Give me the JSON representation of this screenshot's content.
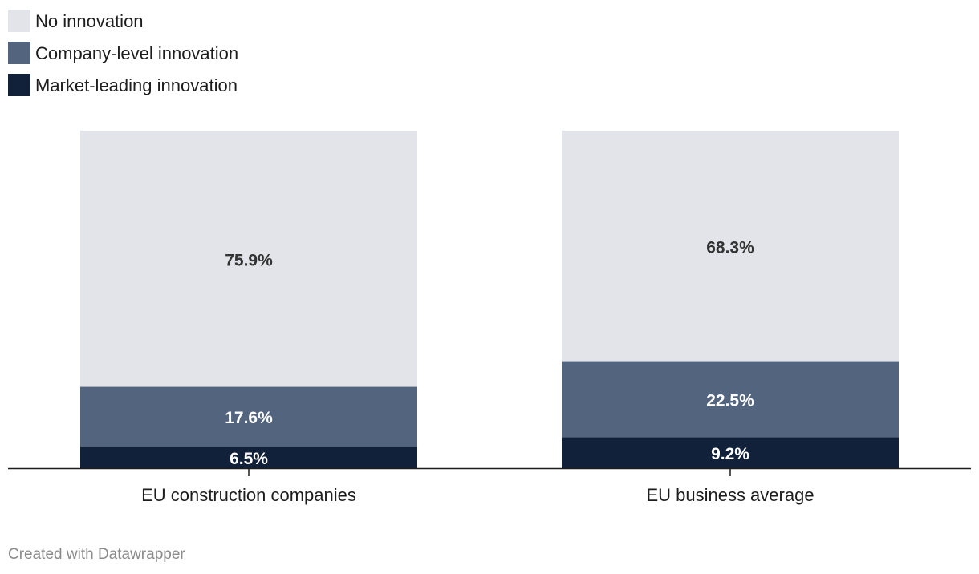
{
  "chart_data": {
    "type": "bar",
    "stacked": true,
    "title": "",
    "xlabel": "",
    "ylabel": "",
    "ylim": [
      0,
      100
    ],
    "grid": false,
    "legend_position": "top-left",
    "categories": [
      "EU construction companies",
      "EU business average"
    ],
    "series": [
      {
        "name": "Market-leading innovation",
        "values": [
          6.5,
          9.2
        ],
        "color": "#12213a",
        "label_color": "#ffffff"
      },
      {
        "name": "Company-level innovation",
        "values": [
          17.6,
          22.5
        ],
        "color": "#53647e",
        "label_color": "#ffffff"
      },
      {
        "name": "No innovation",
        "values": [
          75.9,
          68.3
        ],
        "color": "#e3e4e9",
        "label_color": "#333333"
      }
    ],
    "legend_order": [
      "No innovation",
      "Company-level innovation",
      "Market-leading innovation"
    ],
    "value_suffix": "%"
  },
  "footer": {
    "credit": "Created with Datawrapper"
  },
  "colors": {
    "axis": "#1d1d1d",
    "text": "#1d1d1d",
    "footer": "#8a8a8a"
  }
}
